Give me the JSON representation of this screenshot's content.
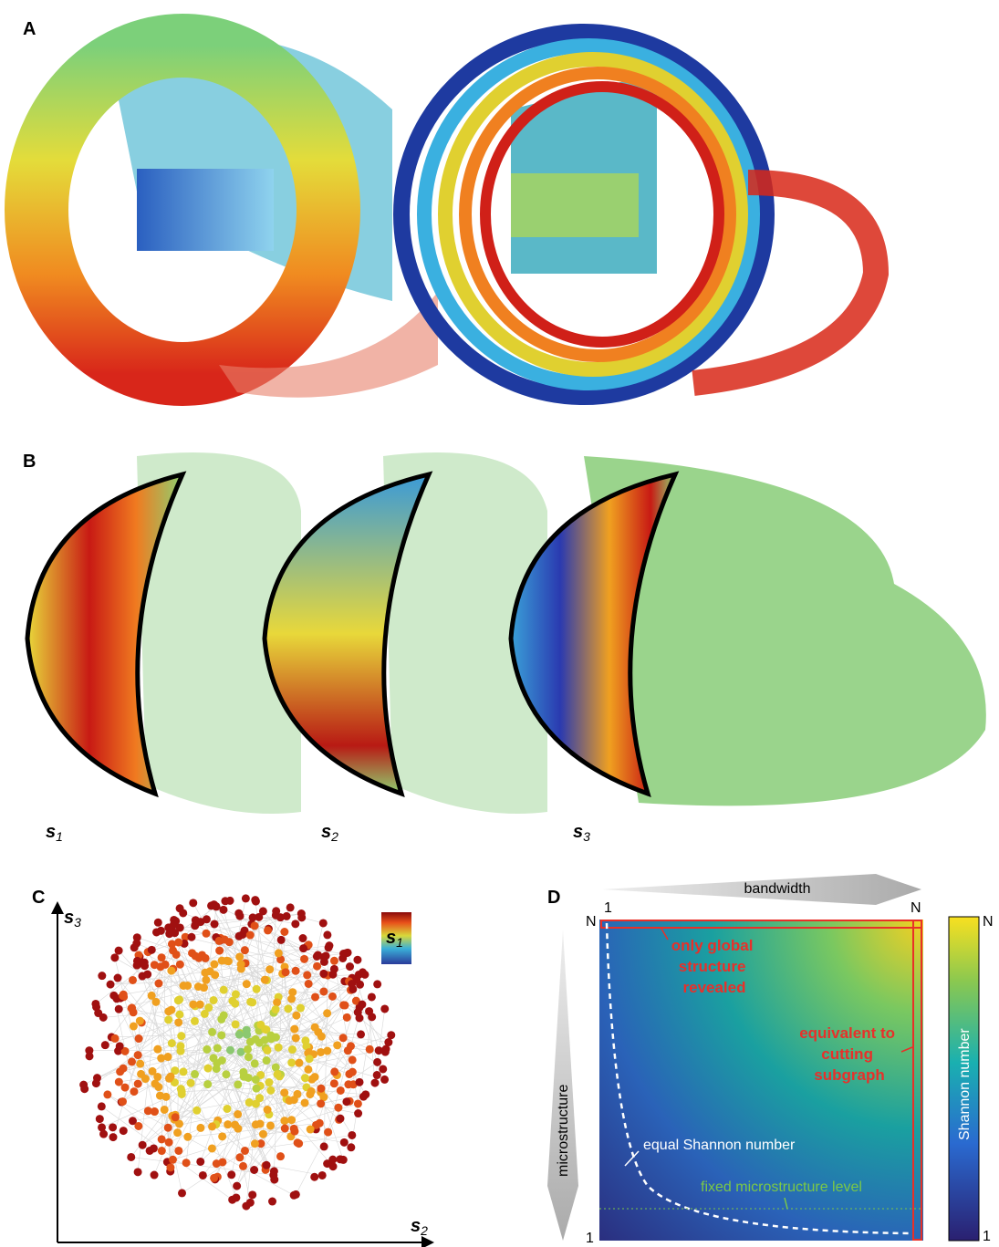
{
  "panels": {
    "a": {
      "label": "A"
    },
    "b": {
      "label": "B",
      "captions": [
        {
          "symbol": "s",
          "subscript": "1"
        },
        {
          "symbol": "s",
          "subscript": "2"
        },
        {
          "symbol": "s",
          "subscript": "3"
        }
      ]
    },
    "c": {
      "label": "C",
      "y_axis": {
        "symbol": "s",
        "subscript": "3"
      },
      "x_axis": {
        "symbol": "s",
        "subscript": "2"
      },
      "colorbar": {
        "symbol": "s",
        "subscript": "1"
      }
    },
    "d": {
      "label": "D",
      "bandwidth": "bandwidth",
      "x_start": "1",
      "x_end": "N",
      "y_top": "N",
      "y_bottom": "1",
      "microstructure": "microstructure",
      "global_note": [
        "only global",
        "structure",
        "revealed"
      ],
      "cutting_note": [
        "equivalent to",
        "cutting",
        "subgraph"
      ],
      "equal_note": "equal Shannon number",
      "fixed_note": "fixed microstructure level",
      "colorbar": {
        "title": "Shannon number",
        "max": "N",
        "min": "1"
      }
    }
  }
}
